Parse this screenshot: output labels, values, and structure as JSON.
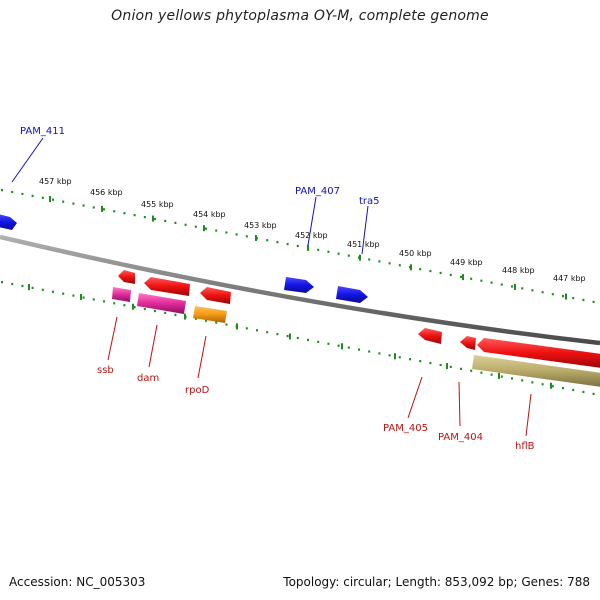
{
  "title": "Onion yellows phytoplasma OY-M, complete genome",
  "footer": {
    "accession": "Accession: NC_005303",
    "stats": "Topology: circular; Length: 853,092 bp; Genes: 788"
  },
  "colors": {
    "backbone": "#7a7a7a",
    "tick": "#1f8a1f",
    "gene_blue": "#1414e6",
    "gene_red": "#ee1111",
    "gene_magenta": "#e02a9a",
    "gene_orange": "#f59a12",
    "gene_olive": "#b8aa68",
    "label_blue": "#1010c0",
    "label_red": "#c01010"
  },
  "scale_labels": [
    "457 kbp",
    "456 kbp",
    "455 kbp",
    "454 kbp",
    "453 kbp",
    "452 kbp",
    "451 kbp",
    "450 kbp",
    "449 kbp",
    "448 kbp",
    "447 kbp"
  ],
  "gene_labels_forward": [
    "PAM_411",
    "PAM_407",
    "tra5"
  ],
  "gene_labels_reverse": [
    "ssb",
    "dam",
    "rpoD",
    "PAM_405",
    "PAM_404",
    "hflB"
  ]
}
